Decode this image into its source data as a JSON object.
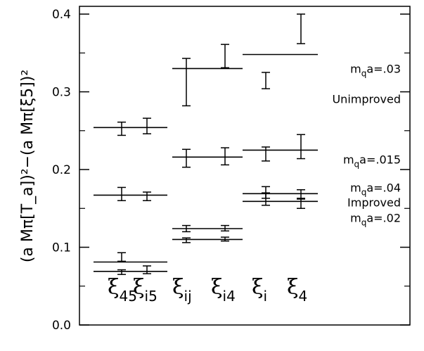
{
  "chart_data": {
    "type": "scatter",
    "title": "",
    "xlabel": "",
    "ylabel": "(a Mπ[T_a])²−(a Mπ[ξ5])²",
    "ylim": [
      0.0,
      0.41
    ],
    "grid": false,
    "y_ticks": [
      "0.0",
      "0.1",
      "0.2",
      "0.3",
      "0.4"
    ],
    "categories": [
      {
        "main": "ξ",
        "sub": "45"
      },
      {
        "main": "ξ",
        "sub": "i5"
      },
      {
        "main": "ξ",
        "sub": "ij"
      },
      {
        "main": "ξ",
        "sub": "i4"
      },
      {
        "main": "ξ",
        "sub": "i"
      },
      {
        "main": "ξ",
        "sub": "4"
      }
    ],
    "points": [
      {
        "category": 0,
        "low": 0.244,
        "high": 0.261
      },
      {
        "category": 1,
        "low": 0.246,
        "high": 0.266
      },
      {
        "category": 2,
        "low": 0.282,
        "high": 0.343
      },
      {
        "category": 3,
        "low": 0.331,
        "high": 0.361
      },
      {
        "category": 4,
        "low": 0.304,
        "high": 0.325
      },
      {
        "category": 5,
        "low": 0.362,
        "high": 0.4
      },
      {
        "category": 0,
        "low": 0.16,
        "high": 0.177
      },
      {
        "category": 1,
        "low": 0.16,
        "high": 0.171
      },
      {
        "category": 2,
        "low": 0.203,
        "high": 0.226
      },
      {
        "category": 3,
        "low": 0.206,
        "high": 0.228
      },
      {
        "category": 4,
        "low": 0.211,
        "high": 0.229
      },
      {
        "category": 5,
        "low": 0.214,
        "high": 0.245
      },
      {
        "category": 0,
        "low": 0.082,
        "high": 0.093
      },
      {
        "category": 2,
        "low": 0.12,
        "high": 0.128
      },
      {
        "category": 3,
        "low": 0.121,
        "high": 0.128
      },
      {
        "category": 4,
        "low": 0.163,
        "high": 0.178
      },
      {
        "category": 5,
        "low": 0.163,
        "high": 0.174
      },
      {
        "category": 0,
        "low": 0.065,
        "high": 0.071
      },
      {
        "category": 1,
        "low": 0.066,
        "high": 0.076
      },
      {
        "category": 2,
        "low": 0.106,
        "high": 0.112
      },
      {
        "category": 3,
        "low": 0.108,
        "high": 0.113
      },
      {
        "category": 4,
        "low": 0.154,
        "high": 0.17
      },
      {
        "category": 5,
        "low": 0.15,
        "high": 0.162
      }
    ],
    "reference_lines": [
      {
        "y": 0.254,
        "from": 0,
        "to": 1
      },
      {
        "y": 0.167,
        "from": 0,
        "to": 1
      },
      {
        "y": 0.081,
        "from": 0,
        "to": 1
      },
      {
        "y": 0.069,
        "from": 0,
        "to": 1
      },
      {
        "y": 0.33,
        "from": 2,
        "to": 3
      },
      {
        "y": 0.216,
        "from": 2,
        "to": 3
      },
      {
        "y": 0.124,
        "from": 2,
        "to": 3
      },
      {
        "y": 0.11,
        "from": 2,
        "to": 3
      },
      {
        "y": 0.348,
        "from": 4,
        "to": 5
      },
      {
        "y": 0.225,
        "from": 4,
        "to": 5
      },
      {
        "y": 0.169,
        "from": 4,
        "to": 5
      },
      {
        "y": 0.159,
        "from": 4,
        "to": 5
      }
    ],
    "annotations": [
      {
        "text": "m",
        "sub": "q",
        "rest": "a=.03",
        "y": 0.33
      },
      {
        "text": "Unimproved",
        "sub": "",
        "rest": "",
        "y": 0.291
      },
      {
        "text": "m",
        "sub": "q",
        "rest": "a=.015",
        "y": 0.213
      },
      {
        "text": "m",
        "sub": "q",
        "rest": "a=.04",
        "y": 0.177
      },
      {
        "text": "Improved",
        "sub": "",
        "rest": "",
        "y": 0.158
      },
      {
        "text": "m",
        "sub": "q",
        "rest": "a=.02",
        "y": 0.138
      }
    ]
  }
}
